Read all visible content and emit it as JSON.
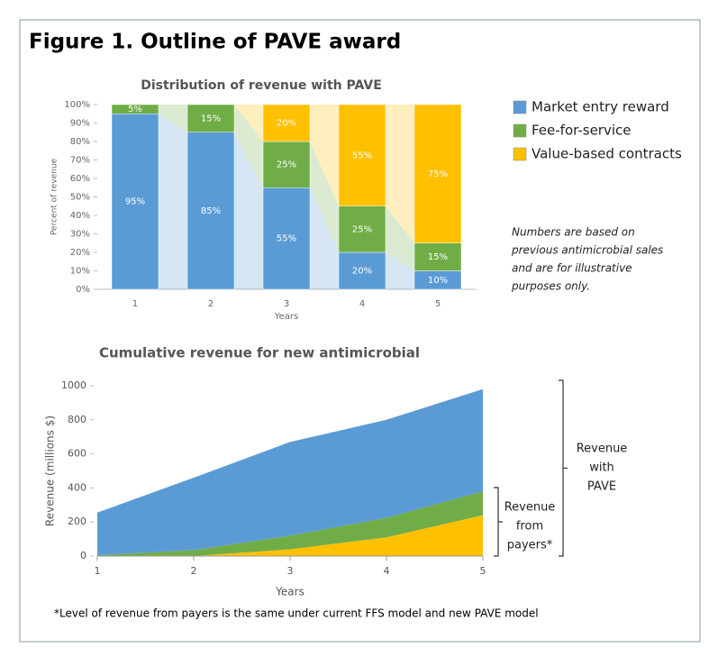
{
  "figure_title": "Figure 1. Outline of PAVE award",
  "chart_data": [
    {
      "type": "bar",
      "stacked": true,
      "title": "Distribution of revenue with PAVE",
      "categories": [
        "1",
        "2",
        "3",
        "4",
        "5"
      ],
      "series": [
        {
          "name": "Market entry reward",
          "color": "#5b9bd5",
          "values": [
            95,
            85,
            55,
            20,
            10
          ],
          "value_labels": [
            "95%",
            "85%",
            "55%",
            "20%",
            "10%"
          ]
        },
        {
          "name": "Fee-for-service",
          "color": "#70ad47",
          "values": [
            5,
            15,
            25,
            25,
            15
          ],
          "value_labels": [
            "5%",
            "15%",
            "25%",
            "25%",
            "15%"
          ]
        },
        {
          "name": "Value-based contracts",
          "color": "#ffc000",
          "values": [
            0,
            0,
            20,
            55,
            75
          ],
          "value_labels": [
            null,
            null,
            "20%",
            "55%",
            "75%"
          ]
        }
      ],
      "xlabel": "Years",
      "ylabel": "Percent of revenue",
      "ylim": [
        0,
        100
      ],
      "yticks": [
        {
          "value": 0,
          "label": "0%"
        },
        {
          "value": 10,
          "label": "10%"
        },
        {
          "value": 20,
          "label": "20%"
        },
        {
          "value": 30,
          "label": "30%"
        },
        {
          "value": 40,
          "label": "40%"
        },
        {
          "value": 50,
          "label": "50%"
        },
        {
          "value": 60,
          "label": "60%"
        },
        {
          "value": 70,
          "label": "70%"
        },
        {
          "value": 80,
          "label": "80%"
        },
        {
          "value": 90,
          "label": "90%"
        },
        {
          "value": 100,
          "label": "100%"
        }
      ],
      "legend": "right",
      "note": [
        "Numbers are based on",
        "previous antimicrobial sales",
        "and are for illustrative",
        "purposes only."
      ]
    },
    {
      "type": "area",
      "stacked": true,
      "title": "Cumulative revenue for new antimicrobial",
      "x": [
        1,
        2,
        3,
        4,
        5
      ],
      "series": [
        {
          "color": "#ffc000",
          "values": [
            0,
            0,
            40,
            110,
            240
          ]
        },
        {
          "color": "#70ad47",
          "values": [
            5,
            35,
            80,
            115,
            140
          ]
        },
        {
          "color": "#5b9bd5",
          "values": [
            250,
            425,
            550,
            575,
            600
          ]
        }
      ],
      "xlabel": "Years",
      "ylabel": "Revenue (millions $)",
      "xlim": [
        1,
        5
      ],
      "xticks": [
        1,
        2,
        3,
        4,
        5
      ],
      "ylim": [
        0,
        1000
      ],
      "yticks": [
        0,
        200,
        400,
        600,
        800,
        1000
      ],
      "brackets": [
        {
          "lines": [
            "Revenue",
            "with",
            "PAVE"
          ]
        },
        {
          "lines": [
            "Revenue",
            "from",
            "payers*"
          ]
        }
      ]
    }
  ],
  "footnote": "*Level of revenue from payers is the same under current FFS model and new PAVE model"
}
